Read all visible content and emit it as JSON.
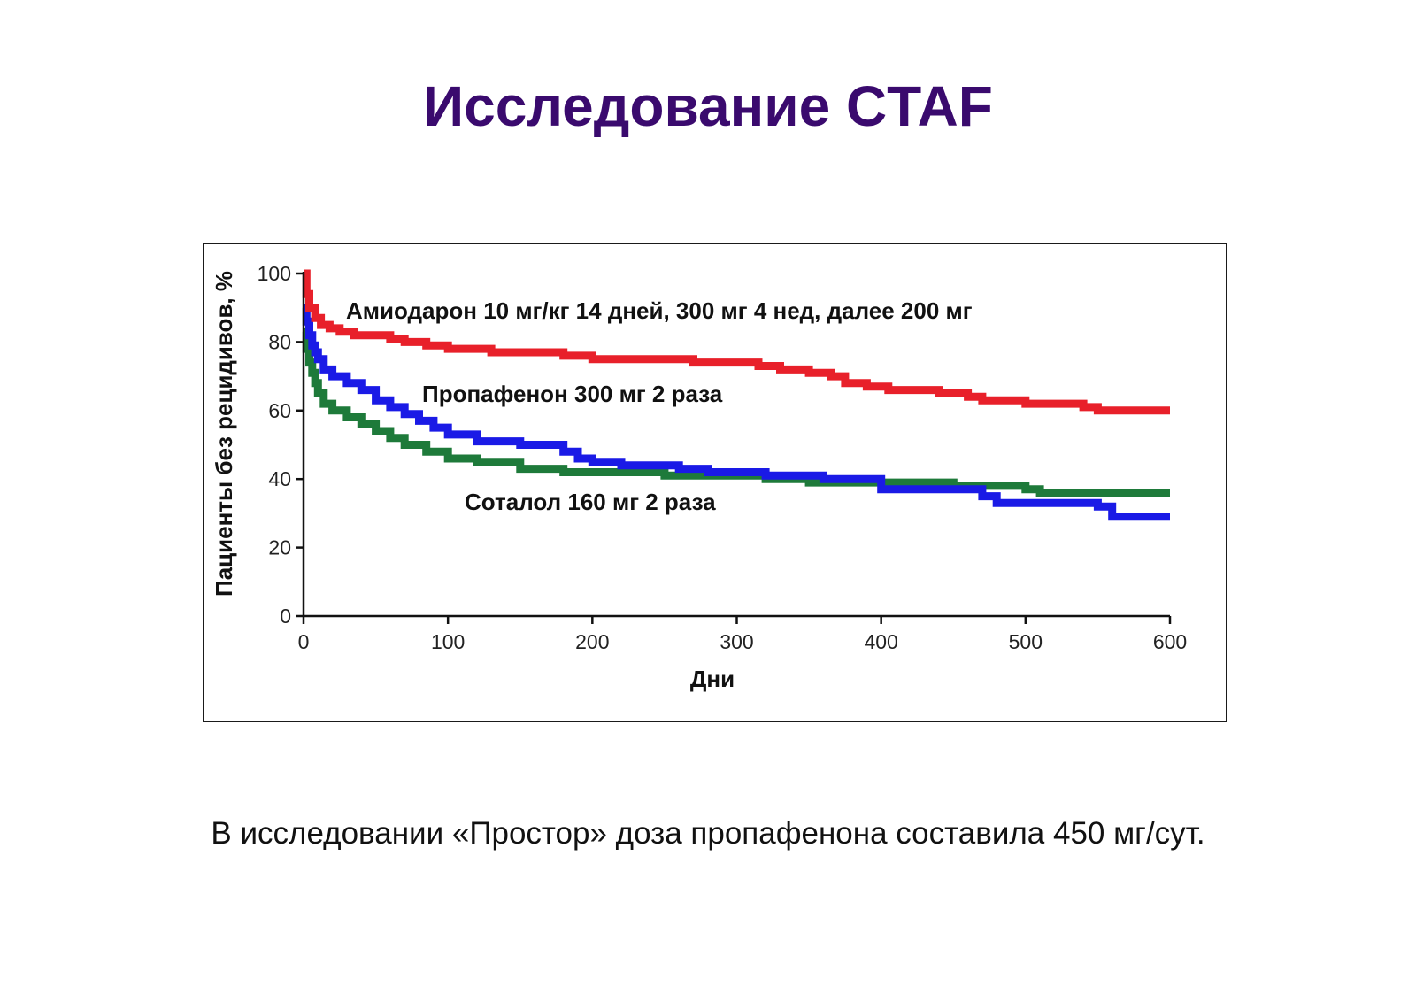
{
  "slide": {
    "title": "Исследование CTAF",
    "caption": "В исследовании «Простор» доза пропафенона составила 450 мг/сут."
  },
  "chart_data": {
    "type": "line",
    "step": true,
    "xlabel": "Дни",
    "ylabel": "Пациенты без рецидивов, %",
    "xlim": [
      0,
      600
    ],
    "ylim": [
      0,
      100
    ],
    "xticks": [
      0,
      100,
      200,
      300,
      400,
      500,
      600
    ],
    "yticks": [
      0,
      20,
      40,
      60,
      80,
      100
    ],
    "grid": false,
    "legend": "inline labels",
    "series": [
      {
        "name": "Амиодарон 10 мг/кг 14 дней, 300 мг 4 нед, далее 200 мг",
        "color": "#e8202a",
        "x": [
          0,
          2,
          4,
          8,
          12,
          18,
          25,
          35,
          60,
          70,
          85,
          100,
          130,
          160,
          180,
          200,
          220,
          270,
          300,
          315,
          330,
          350,
          365,
          375,
          390,
          405,
          440,
          460,
          470,
          480,
          500,
          530,
          540,
          550,
          580,
          600
        ],
        "y": [
          100,
          94,
          90,
          87,
          85,
          84,
          83,
          82,
          81,
          80,
          79,
          78,
          77,
          77,
          76,
          75,
          75,
          74,
          74,
          73,
          72,
          71,
          70,
          68,
          67,
          66,
          65,
          64,
          63,
          63,
          62,
          62,
          61,
          60,
          60,
          60
        ]
      },
      {
        "name": "Пропафенон 300 мг 2 раза",
        "color": "#1a1ae6",
        "x": [
          0,
          2,
          4,
          6,
          8,
          10,
          14,
          20,
          30,
          40,
          50,
          60,
          70,
          80,
          90,
          100,
          120,
          150,
          170,
          180,
          190,
          200,
          220,
          260,
          280,
          320,
          360,
          400,
          430,
          460,
          470,
          480,
          520,
          550,
          560,
          600
        ],
        "y": [
          90,
          86,
          82,
          79,
          77,
          75,
          72,
          70,
          68,
          66,
          63,
          61,
          59,
          57,
          55,
          53,
          51,
          50,
          50,
          48,
          46,
          45,
          44,
          43,
          42,
          41,
          40,
          37,
          37,
          37,
          35,
          33,
          33,
          32,
          29,
          29
        ]
      },
      {
        "name": "Соталол 160 мг 2 раза",
        "color": "#1e7a3a",
        "x": [
          0,
          2,
          4,
          6,
          8,
          10,
          14,
          20,
          30,
          40,
          50,
          60,
          70,
          85,
          100,
          120,
          150,
          180,
          200,
          250,
          300,
          320,
          350,
          400,
          450,
          480,
          500,
          510,
          550,
          600
        ],
        "y": [
          83,
          78,
          74,
          71,
          68,
          65,
          62,
          60,
          58,
          56,
          54,
          52,
          50,
          48,
          46,
          45,
          43,
          42,
          42,
          41,
          41,
          40,
          39,
          39,
          38,
          38,
          37,
          36,
          36,
          36
        ]
      }
    ]
  }
}
